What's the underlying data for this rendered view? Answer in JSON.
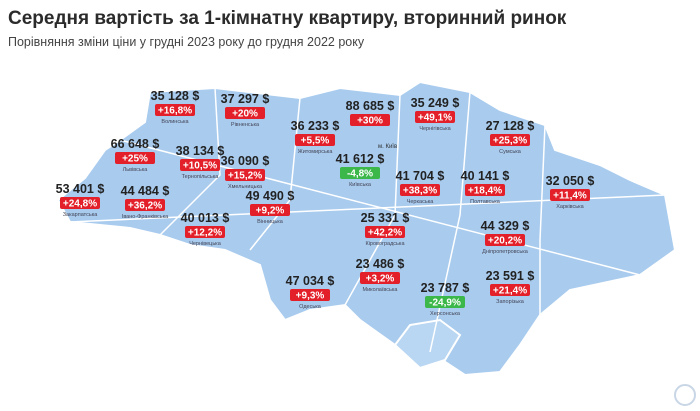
{
  "header": {
    "title": "Середня вартість за 1-кімнатну квартиру, вторинний ринок",
    "subtitle": "Порівняння зміни ціни у грудні 2023 року до грудня 2022 року"
  },
  "capital_label": "м. Київ",
  "regions": [
    {
      "name": "Волинська",
      "price": "35 128 $",
      "change": "+16,8%"
    },
    {
      "name": "Рівненська",
      "price": "37 297 $",
      "change": "+20%"
    },
    {
      "name": "Житомирська",
      "price": "36 233 $",
      "change": "+5,5%"
    },
    {
      "name": "",
      "price": "88 685 $",
      "change": "+30%"
    },
    {
      "name": "Чернігівська",
      "price": "35 249 $",
      "change": "+49,1%"
    },
    {
      "name": "Сумська",
      "price": "27 128 $",
      "change": "+25,3%"
    },
    {
      "name": "Львівська",
      "price": "66 648 $",
      "change": "+25%"
    },
    {
      "name": "Тернопільська",
      "price": "38 134 $",
      "change": "+10,5%"
    },
    {
      "name": "Хмельницька",
      "price": "36 090 $",
      "change": "+15,2%"
    },
    {
      "name": "Київська",
      "price": "41 612 $",
      "change": "-4,8%"
    },
    {
      "name": "Черкаська",
      "price": "41 704 $",
      "change": "+38,3%"
    },
    {
      "name": "Полтавська",
      "price": "40 141 $",
      "change": "+18,4%"
    },
    {
      "name": "Харківська",
      "price": "32 050 $",
      "change": "+11,4%"
    },
    {
      "name": "Закарпатська",
      "price": "53 401 $",
      "change": "+24,8%"
    },
    {
      "name": "Івано-Франківська",
      "price": "44 484 $",
      "change": "+36,2%"
    },
    {
      "name": "Вінницька",
      "price": "49 490 $",
      "change": "+9,2%"
    },
    {
      "name": "Чернівецька",
      "price": "40 013 $",
      "change": "+12,2%"
    },
    {
      "name": "Кіровоградська",
      "price": "25 331 $",
      "change": "+42,2%"
    },
    {
      "name": "Дніпропетровська",
      "price": "44 329 $",
      "change": "+20,2%"
    },
    {
      "name": "Одеська",
      "price": "47 034 $",
      "change": "+9,3%"
    },
    {
      "name": "Миколаївська",
      "price": "23 486 $",
      "change": "+3,2%"
    },
    {
      "name": "Херсонська",
      "price": "23 787 $",
      "change": "-24,9%"
    },
    {
      "name": "Запорізька",
      "price": "23 591 $",
      "change": "+21,4%"
    }
  ]
}
